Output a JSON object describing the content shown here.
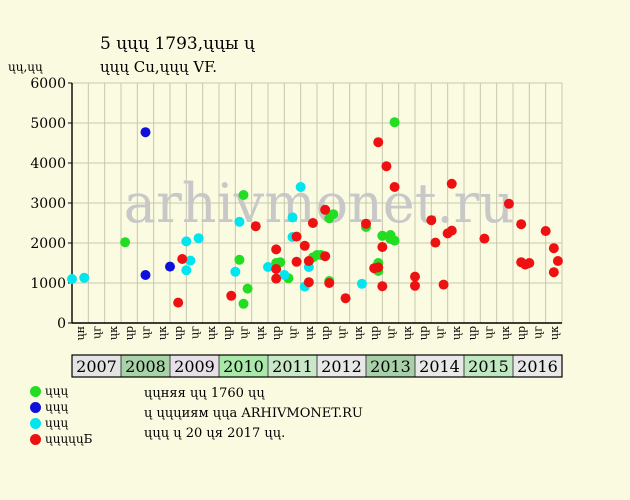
{
  "header": {
    "title_line1": "5 ųųų 1793,ųųы ų",
    "title_line2": "ųųų Cu,ųųų VF."
  },
  "footer": {
    "note1": "ųųняя ųų 1760 ųų",
    "note2": "ų ųųųиям ųųа ARHIVMONET.RU",
    "note3": "ųųų ų 20 ųя 2017 ųų."
  },
  "watermark": "arhivmonet.ru",
  "chart_data": {
    "type": "scatter",
    "title": "5 ųųų 1793,ųųы ų",
    "subtitle": "ųųų Cu,ųųų VF.",
    "ylabel": "ųų,ųų",
    "ylim": [
      0,
      6000
    ],
    "yticks": [
      0,
      1000,
      2000,
      3000,
      4000,
      5000,
      6000
    ],
    "grid": true,
    "legend_position": "bottom-left",
    "x_start": "2007-01",
    "x_end": "2016-12",
    "quarter_labels": [
      "ųн",
      "ųг",
      "ųк",
      "ųр"
    ],
    "quarter_pattern": [
      0,
      1,
      2,
      3,
      1,
      2,
      3,
      1,
      2,
      3,
      1,
      2,
      3,
      1,
      2,
      3,
      1,
      2,
      3,
      1,
      2,
      3,
      1,
      2,
      3,
      1,
      2,
      3,
      1,
      2
    ],
    "years": [
      {
        "label": "2007",
        "color": "#e4e4e4"
      },
      {
        "label": "2008",
        "color": "#a8d2a8"
      },
      {
        "label": "2009",
        "color": "#e8e0e8"
      },
      {
        "label": "2010",
        "color": "#a8e8a8"
      },
      {
        "label": "2011",
        "color": "#c8e8c8"
      },
      {
        "label": "2012",
        "color": "#e8e8e8"
      },
      {
        "label": "2013",
        "color": "#a8d0a8"
      },
      {
        "label": "2014",
        "color": "#e8e8e8"
      },
      {
        "label": "2015",
        "color": "#c0e8c0"
      },
      {
        "label": "2016",
        "color": "#e8e8e8"
      }
    ],
    "series": [
      {
        "name": "ųųų",
        "color": "#22dd22",
        "points": [
          [
            "2008-01",
            2020
          ],
          [
            "2010-05",
            1580
          ],
          [
            "2010-06",
            3200
          ],
          [
            "2010-06",
            480
          ],
          [
            "2010-07",
            860
          ],
          [
            "2011-02",
            1500
          ],
          [
            "2011-03",
            1520
          ],
          [
            "2011-05",
            1120
          ],
          [
            "2011-11",
            1640
          ],
          [
            "2012-00",
            1700
          ],
          [
            "2012-01",
            1700
          ],
          [
            "2012-03",
            1050
          ],
          [
            "2012-03",
            2620
          ],
          [
            "2012-04",
            2720
          ],
          [
            "2013-00",
            2400
          ],
          [
            "2013-03",
            1300
          ],
          [
            "2013-03",
            1500
          ],
          [
            "2013-04",
            2180
          ],
          [
            "2013-06",
            2200
          ],
          [
            "2013-06",
            2100
          ],
          [
            "2013-07",
            2060
          ],
          [
            "2013-07",
            5020
          ]
        ]
      },
      {
        "name": "ųųų",
        "color": "#1010dd",
        "points": [
          [
            "2008-06",
            4770
          ],
          [
            "2008-06",
            1200
          ],
          [
            "2009-00",
            1410
          ]
        ]
      },
      {
        "name": "ųųų",
        "color": "#00e5ee",
        "points": [
          [
            "2007-00",
            1100
          ],
          [
            "2007-03",
            1130
          ],
          [
            "2009-04",
            2040
          ],
          [
            "2009-04",
            1320
          ],
          [
            "2009-05",
            1560
          ],
          [
            "2009-07",
            2120
          ],
          [
            "2010-04",
            1280
          ],
          [
            "2010-05",
            2530
          ],
          [
            "2011-00",
            1400
          ],
          [
            "2011-04",
            1200
          ],
          [
            "2011-06",
            2150
          ],
          [
            "2011-06",
            2640
          ],
          [
            "2011-08",
            3400
          ],
          [
            "2011-09",
            910
          ],
          [
            "2011-10",
            1400
          ],
          [
            "2012-11",
            980
          ]
        ]
      },
      {
        "name": "ųųųųųБ",
        "color": "#ee1111",
        "points": [
          [
            "2009-02",
            510
          ],
          [
            "2009-03",
            1600
          ],
          [
            "2010-03",
            680
          ],
          [
            "2010-09",
            2420
          ],
          [
            "2011-02",
            1840
          ],
          [
            "2011-02",
            1350
          ],
          [
            "2011-02",
            1110
          ],
          [
            "2011-07",
            2160
          ],
          [
            "2011-07",
            1530
          ],
          [
            "2011-09",
            1930
          ],
          [
            "2011-10",
            1550
          ],
          [
            "2011-10",
            1020
          ],
          [
            "2011-11",
            2500
          ],
          [
            "2012-02",
            2830
          ],
          [
            "2012-02",
            1670
          ],
          [
            "2012-03",
            1000
          ],
          [
            "2012-07",
            620
          ],
          [
            "2013-00",
            2480
          ],
          [
            "2013-02",
            1370
          ],
          [
            "2013-03",
            1390
          ],
          [
            "2013-03",
            4520
          ],
          [
            "2013-04",
            1900
          ],
          [
            "2013-04",
            920
          ],
          [
            "2013-05",
            3920
          ],
          [
            "2013-07",
            3400
          ],
          [
            "2014-00",
            930
          ],
          [
            "2014-00",
            1160
          ],
          [
            "2014-04",
            2570
          ],
          [
            "2014-05",
            2010
          ],
          [
            "2014-07",
            960
          ],
          [
            "2014-08",
            2240
          ],
          [
            "2014-09",
            3480
          ],
          [
            "2014-09",
            2310
          ],
          [
            "2015-05",
            2110
          ],
          [
            "2015-11",
            2980
          ],
          [
            "2016-02",
            1520
          ],
          [
            "2016-02",
            2470
          ],
          [
            "2016-03",
            1460
          ],
          [
            "2016-04",
            1500
          ],
          [
            "2016-08",
            2300
          ],
          [
            "2016-10",
            1870
          ],
          [
            "2016-10",
            1270
          ],
          [
            "2016-11",
            1550
          ]
        ]
      }
    ]
  }
}
